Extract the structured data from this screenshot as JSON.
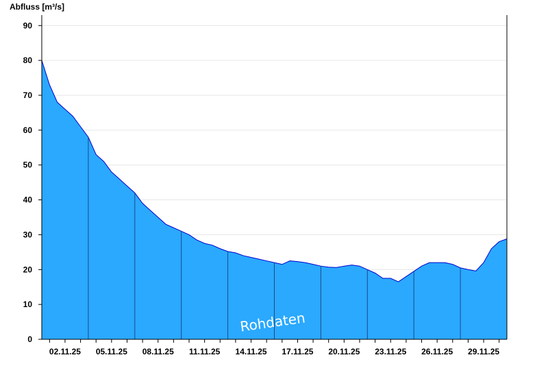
{
  "chart_data": {
    "type": "area",
    "title": "",
    "ylabel": "Abfluss [m³/s]",
    "xlabel": "",
    "ylim": [
      0,
      93
    ],
    "yticks": [
      0,
      10,
      20,
      30,
      40,
      50,
      60,
      70,
      80,
      90
    ],
    "xlim": [
      "2025-11-01",
      "2025-12-01"
    ],
    "xticks": [
      "02.11.25",
      "05.11.25",
      "08.11.25",
      "11.11.25",
      "14.11.25",
      "17.11.25",
      "20.11.25",
      "23.11.25",
      "26.11.25",
      "29.11.25"
    ],
    "x": [
      "2025-11-01",
      "2025-11-01T12:00",
      "2025-11-02",
      "2025-11-02T12:00",
      "2025-11-03",
      "2025-11-03T12:00",
      "2025-11-04",
      "2025-11-04T12:00",
      "2025-11-05",
      "2025-11-05T12:00",
      "2025-11-06",
      "2025-11-06T12:00",
      "2025-11-07",
      "2025-11-07T12:00",
      "2025-11-08",
      "2025-11-08T12:00",
      "2025-11-09",
      "2025-11-09T12:00",
      "2025-11-10",
      "2025-11-10T12:00",
      "2025-11-11",
      "2025-11-11T12:00",
      "2025-11-12",
      "2025-11-12T12:00",
      "2025-11-13",
      "2025-11-13T12:00",
      "2025-11-14",
      "2025-11-14T12:00",
      "2025-11-15",
      "2025-11-15T12:00",
      "2025-11-16",
      "2025-11-16T12:00",
      "2025-11-17",
      "2025-11-17T12:00",
      "2025-11-18",
      "2025-11-18T12:00",
      "2025-11-19",
      "2025-11-19T12:00",
      "2025-11-20",
      "2025-11-20T12:00",
      "2025-11-21",
      "2025-11-21T12:00",
      "2025-11-22",
      "2025-11-22T12:00",
      "2025-11-23",
      "2025-11-23T12:00",
      "2025-11-24",
      "2025-11-24T12:00",
      "2025-11-25",
      "2025-11-25T12:00",
      "2025-11-26",
      "2025-11-26T12:00",
      "2025-11-27",
      "2025-11-27T12:00",
      "2025-11-28",
      "2025-11-28T12:00",
      "2025-11-29",
      "2025-11-29T12:00",
      "2025-11-30",
      "2025-11-30T12:00",
      "2025-12-01"
    ],
    "values": [
      80,
      73,
      68,
      66,
      64,
      61,
      58,
      53,
      51,
      48,
      46,
      44,
      42,
      39,
      37,
      35,
      33,
      32,
      31,
      30,
      28.5,
      27.5,
      27,
      26,
      25.2,
      24.8,
      24,
      23.5,
      23,
      22.5,
      22,
      21.5,
      22.5,
      22.3,
      22,
      21.5,
      21,
      20.7,
      20.6,
      21,
      21.3,
      21,
      20,
      19,
      17.5,
      17.5,
      16.5,
      18,
      19.5,
      21,
      22,
      22,
      22,
      21.5,
      20.5,
      20,
      19.6,
      22,
      26,
      28,
      28.8
    ],
    "series": [
      {
        "values_ref": "values",
        "color": "#2aa9ff",
        "line_color": "#0000cc"
      }
    ],
    "watermark": "Rohdaten",
    "grid": true,
    "legend": "none"
  }
}
